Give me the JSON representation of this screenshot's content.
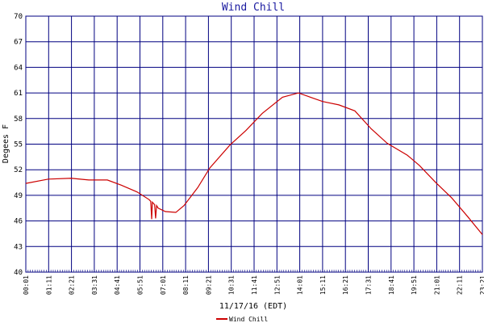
{
  "chart_data": {
    "type": "line",
    "title": "Wind Chill",
    "x_label": "11/17/16 (EDT)",
    "y_label": "Degees F",
    "x": [
      1,
      70,
      140,
      194,
      251,
      293,
      342,
      379,
      384,
      387,
      389,
      396,
      399,
      402,
      407,
      429,
      461,
      486,
      528,
      565,
      627,
      676,
      726,
      788,
      837,
      874,
      911,
      961,
      1010,
      1060,
      1109,
      1171,
      1208,
      1258,
      1307,
      1356,
      1401
    ],
    "series": [
      {
        "name": "Wind Chill",
        "color": "#cc0000",
        "values": [
          50.4,
          50.9,
          51.0,
          50.8,
          50.8,
          50.2,
          49.4,
          48.5,
          48.3,
          46.2,
          48.2,
          47.9,
          46.3,
          47.8,
          47.5,
          47.1,
          47.0,
          47.8,
          49.9,
          52.2,
          54.9,
          56.6,
          58.6,
          60.5,
          61.0,
          60.5,
          60.0,
          59.6,
          58.9,
          56.8,
          55.1,
          53.7,
          52.5,
          50.5,
          48.7,
          46.5,
          44.4
        ]
      }
    ],
    "xlim": [
      1,
      1401
    ],
    "xticks": [
      {
        "value": 1,
        "label": "00:01"
      },
      {
        "value": 71,
        "label": "01:11"
      },
      {
        "value": 141,
        "label": "02:21"
      },
      {
        "value": 211,
        "label": "03:31"
      },
      {
        "value": 281,
        "label": "04:41"
      },
      {
        "value": 351,
        "label": "05:51"
      },
      {
        "value": 421,
        "label": "07:01"
      },
      {
        "value": 491,
        "label": "08:11"
      },
      {
        "value": 561,
        "label": "09:21"
      },
      {
        "value": 631,
        "label": "10:31"
      },
      {
        "value": 701,
        "label": "11:41"
      },
      {
        "value": 771,
        "label": "12:51"
      },
      {
        "value": 841,
        "label": "14:01"
      },
      {
        "value": 911,
        "label": "15:11"
      },
      {
        "value": 981,
        "label": "16:21"
      },
      {
        "value": 1051,
        "label": "17:31"
      },
      {
        "value": 1121,
        "label": "18:41"
      },
      {
        "value": 1191,
        "label": "19:51"
      },
      {
        "value": 1261,
        "label": "21:01"
      },
      {
        "value": 1331,
        "label": "22:11"
      },
      {
        "value": 1401,
        "label": "23:21"
      }
    ],
    "ylim": [
      40,
      70
    ],
    "yticks": [
      40,
      43,
      46,
      49,
      52,
      55,
      58,
      61,
      64,
      67,
      70
    ],
    "grid": true
  }
}
